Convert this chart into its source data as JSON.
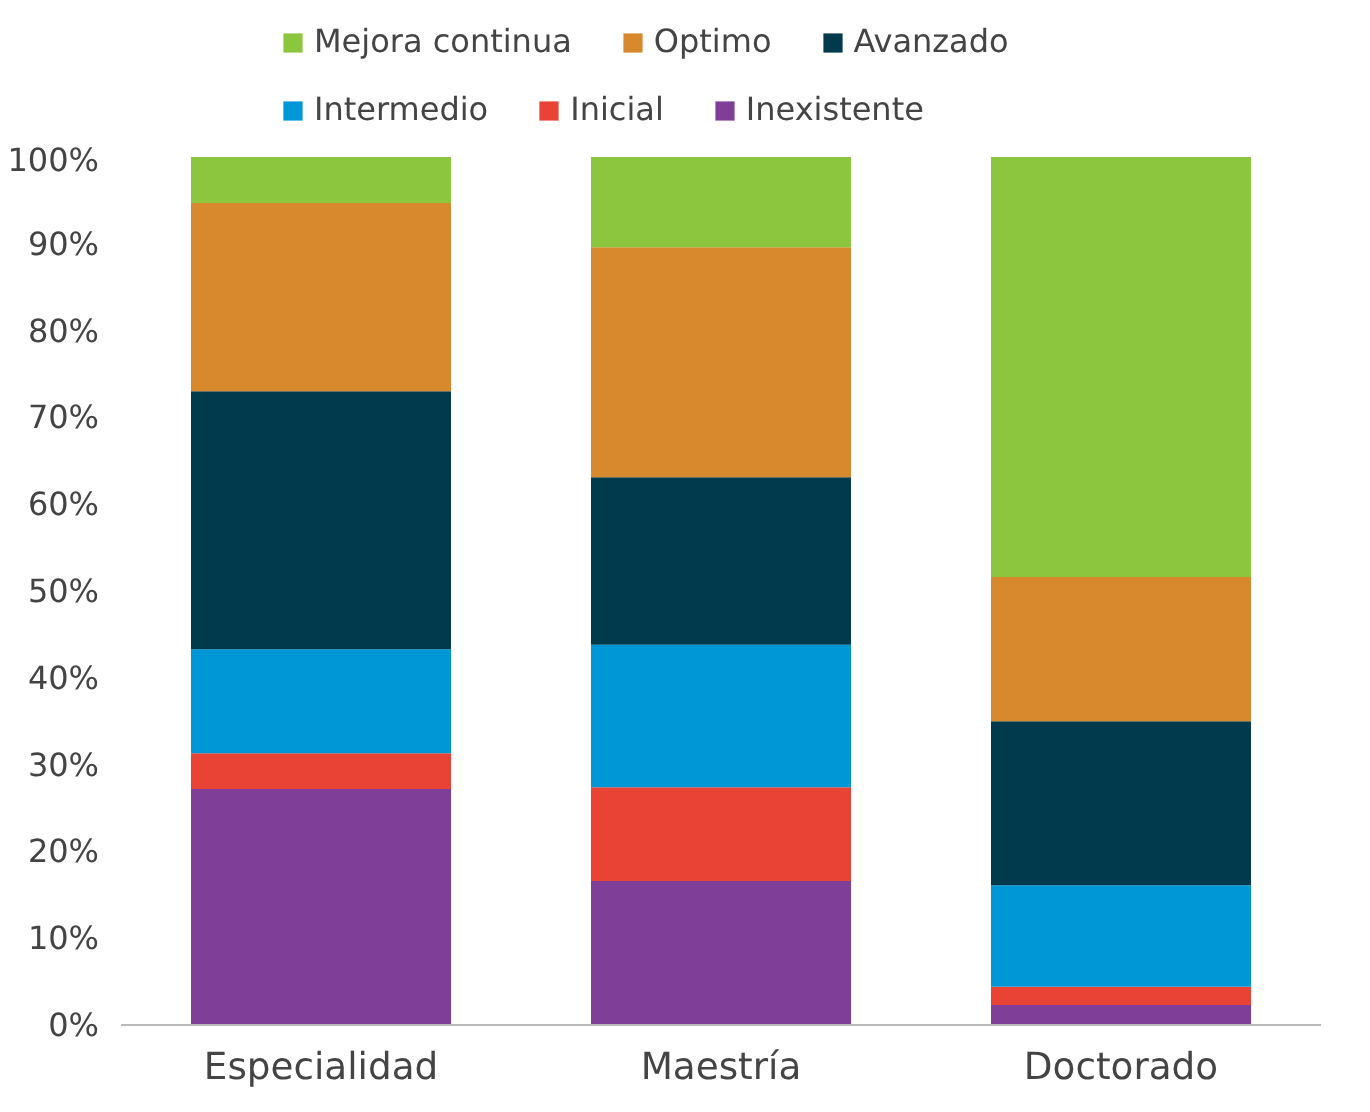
{
  "chart_data": {
    "type": "bar",
    "stacked": true,
    "categories": [
      "Especialidad",
      "Maestría",
      "Doctorado"
    ],
    "series": [
      {
        "name": "Inexistente",
        "color": "#7f3f98",
        "values": [
          27.2,
          16.6,
          2.3
        ]
      },
      {
        "name": "Inicial",
        "color": "#e94335",
        "values": [
          4.1,
          10.8,
          2.1
        ]
      },
      {
        "name": "Intermedio",
        "color": "#0097d7",
        "values": [
          12.0,
          16.4,
          11.7
        ]
      },
      {
        "name": "Avanzado",
        "color": "#003a4c",
        "values": [
          29.7,
          19.3,
          18.9
        ]
      },
      {
        "name": "Optimo",
        "color": "#d8892d",
        "values": [
          21.7,
          26.5,
          16.6
        ]
      },
      {
        "name": "Mejora continua",
        "color": "#8cc63f",
        "values": [
          5.3,
          10.4,
          48.4
        ]
      }
    ],
    "ylim": [
      0,
      100
    ],
    "yticks": [
      {
        "value": 0,
        "label": "0%"
      },
      {
        "value": 10,
        "label": "10%"
      },
      {
        "value": 20,
        "label": "20%"
      },
      {
        "value": 30,
        "label": "30%"
      },
      {
        "value": 40,
        "label": "40%"
      },
      {
        "value": 50,
        "label": "50%"
      },
      {
        "value": 60,
        "label": "60%"
      },
      {
        "value": 70,
        "label": "70%"
      },
      {
        "value": 80,
        "label": "80%"
      },
      {
        "value": 90,
        "label": "90%"
      },
      {
        "value": 100,
        "label": "100%"
      }
    ],
    "grid": false,
    "legend": "top"
  }
}
